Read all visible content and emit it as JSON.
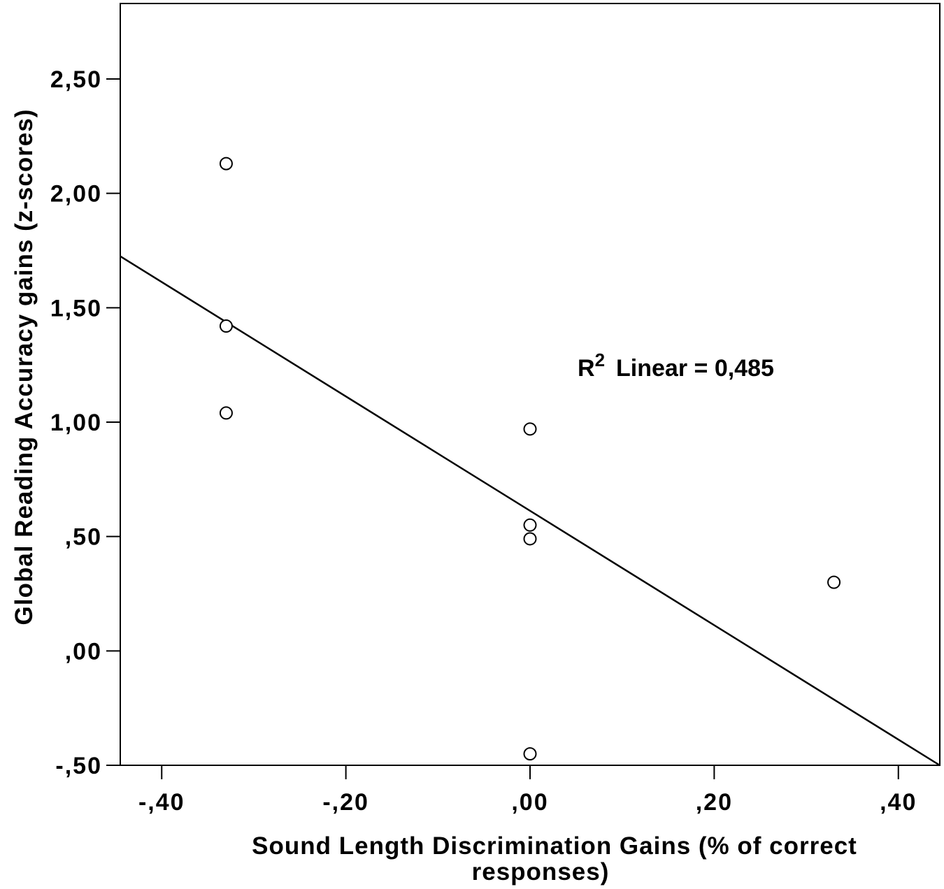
{
  "chart_data": {
    "type": "scatter",
    "title": "",
    "xlabel_line1": "Sound Length Discrimination Gains (% of correct",
    "xlabel_line2": "responses)",
    "ylabel": "Global Reading Accuracy gains (z-scores)",
    "xlim": [
      -0.445,
      0.445
    ],
    "ylim": [
      -0.5,
      2.83
    ],
    "x_ticks": [
      {
        "value": -0.4,
        "label": "-,40"
      },
      {
        "value": -0.2,
        "label": "-,20"
      },
      {
        "value": 0.0,
        "label": ",00"
      },
      {
        "value": 0.2,
        "label": ",20"
      },
      {
        "value": 0.4,
        "label": ",40"
      }
    ],
    "y_ticks": [
      {
        "value": -0.5,
        "label": "-,50"
      },
      {
        "value": 0.0,
        "label": ",00"
      },
      {
        "value": 0.5,
        "label": ",50"
      },
      {
        "value": 1.0,
        "label": "1,00"
      },
      {
        "value": 1.5,
        "label": "1,50"
      },
      {
        "value": 2.0,
        "label": "2,00"
      },
      {
        "value": 2.5,
        "label": "2,50"
      }
    ],
    "points": [
      {
        "x": -0.33,
        "y": 2.13
      },
      {
        "x": -0.33,
        "y": 1.42
      },
      {
        "x": -0.33,
        "y": 1.04
      },
      {
        "x": 0.0,
        "y": 0.97
      },
      {
        "x": 0.0,
        "y": 0.55
      },
      {
        "x": 0.0,
        "y": 0.49
      },
      {
        "x": 0.33,
        "y": 0.3
      },
      {
        "x": 0.0,
        "y": -0.45
      }
    ],
    "fit_line": {
      "slope": -2.5,
      "intercept": 0.6125
    },
    "annotation": {
      "r_label": "R",
      "superscript": "2",
      "text": "Linear = 0,485"
    },
    "grid": false,
    "legend": "none",
    "colors": {
      "marker_stroke": "#000000",
      "marker_fill": "#ffffff",
      "line": "#000000",
      "axis": "#000000"
    }
  }
}
